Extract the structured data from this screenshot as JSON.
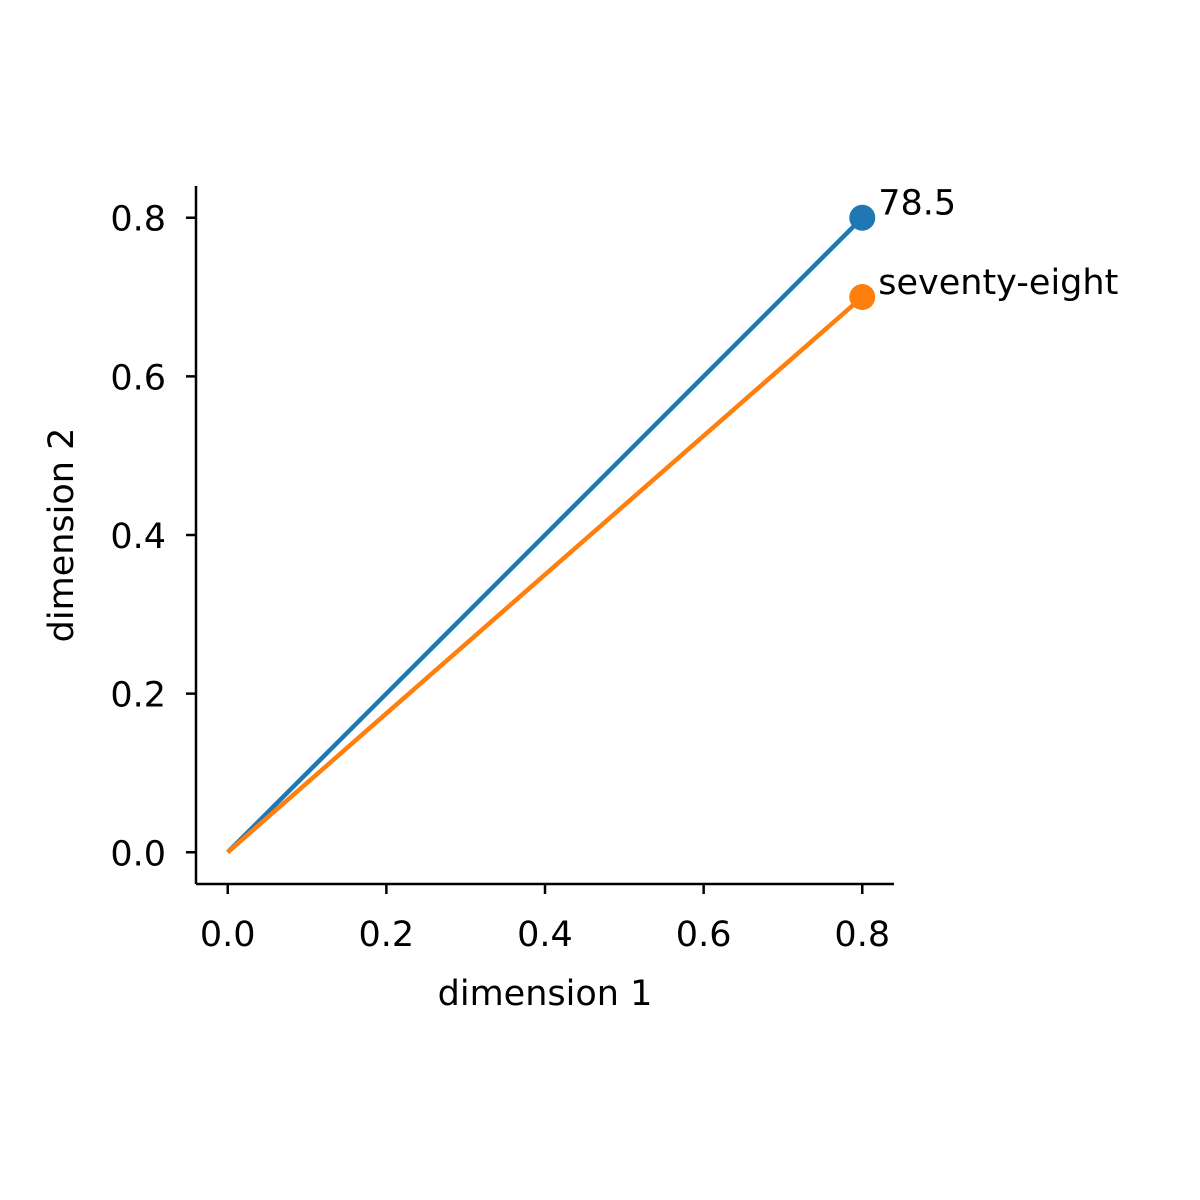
{
  "chart_data": {
    "type": "line",
    "xlabel": "dimension 1",
    "ylabel": "dimension 2",
    "xlim": [
      -0.04,
      0.84
    ],
    "ylim": [
      -0.04,
      0.84
    ],
    "xticks": [
      0.0,
      0.2,
      0.4,
      0.6,
      0.8
    ],
    "yticks": [
      0.0,
      0.2,
      0.4,
      0.6,
      0.8
    ],
    "xtick_labels": [
      "0.0",
      "0.2",
      "0.4",
      "0.6",
      "0.8"
    ],
    "ytick_labels": [
      "0.0",
      "0.2",
      "0.4",
      "0.6",
      "0.8"
    ],
    "grid": false,
    "series": [
      {
        "color": "#1f77b4",
        "points": [
          {
            "x": 0.0,
            "y": 0.0
          },
          {
            "x": 0.8,
            "y": 0.8
          }
        ],
        "end_label": "78.5"
      },
      {
        "color": "#ff7f0e",
        "points": [
          {
            "x": 0.0,
            "y": 0.0
          },
          {
            "x": 0.8,
            "y": 0.7
          }
        ],
        "end_label": "seventy-eight"
      }
    ]
  }
}
